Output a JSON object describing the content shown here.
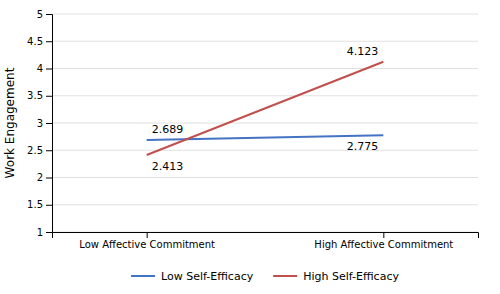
{
  "chart_data": {
    "type": "line",
    "y_label": "Work Engagement",
    "categories": [
      "Low Affective Commitment",
      "High Affective Commitment"
    ],
    "series": [
      {
        "name": "Low Self-Efficacy",
        "color": "#4472C4",
        "values": [
          2.689,
          2.775
        ]
      },
      {
        "name": "High Self-Efficacy",
        "color": "#C0504D",
        "values": [
          2.413,
          4.123
        ]
      }
    ],
    "ylim": [
      1,
      5
    ],
    "yticks": [
      1,
      1.5,
      2,
      2.5,
      3,
      3.5,
      4,
      4.5,
      5
    ],
    "grid": true,
    "legend": "bottom",
    "data_labels": true
  }
}
